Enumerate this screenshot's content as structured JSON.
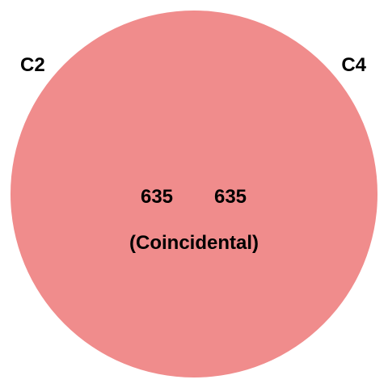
{
  "diagram": {
    "type": "venn",
    "relationship": "coincident",
    "fill_color": "#f08c8c",
    "sets": [
      {
        "name": "C2",
        "count": "635"
      },
      {
        "name": "C4",
        "count": "635"
      }
    ],
    "note": "(Coincidental)"
  }
}
